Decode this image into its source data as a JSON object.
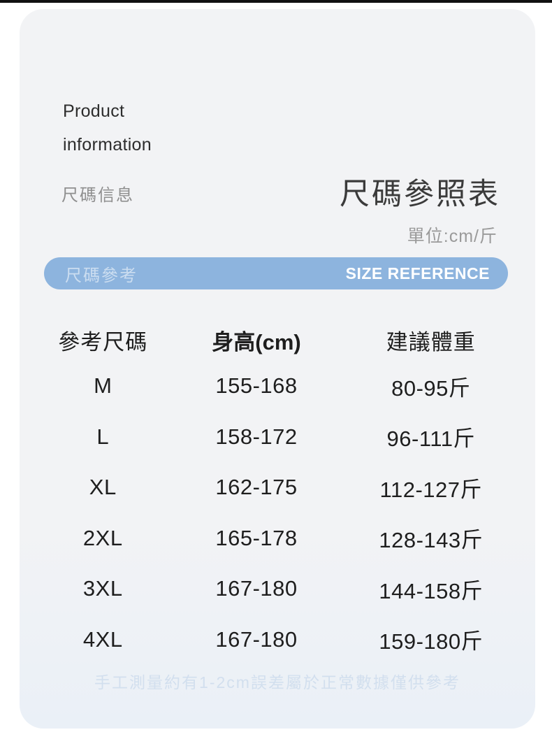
{
  "page": {
    "top_strip_color": "#111111",
    "card_bg": "#f2f3f5",
    "accent_blue": "#8db4de"
  },
  "header": {
    "brand_line1": "Product",
    "brand_line2": "information",
    "subtitle": "尺碼信息",
    "title": "尺碼參照表",
    "unit_note": "單位:cm/斤"
  },
  "banner": {
    "label_zh": "尺碼參考",
    "label_en": "SIZE REFERENCE"
  },
  "table": {
    "headers": [
      "參考尺碼",
      "身高(cm)",
      "建議體重"
    ],
    "rows": [
      {
        "size": "M",
        "height": "155-168",
        "weight": "80-95斤"
      },
      {
        "size": "L",
        "height": "158-172",
        "weight": "96-111斤"
      },
      {
        "size": "XL",
        "height": "162-175",
        "weight": "112-127斤"
      },
      {
        "size": "2XL",
        "height": "165-178",
        "weight": "128-143斤"
      },
      {
        "size": "3XL",
        "height": "167-180",
        "weight": "144-158斤"
      },
      {
        "size": "4XL",
        "height": "167-180",
        "weight": "159-180斤"
      }
    ]
  },
  "footer": {
    "note": "手工測量約有1-2cm誤差屬於正常數據僅供參考"
  }
}
